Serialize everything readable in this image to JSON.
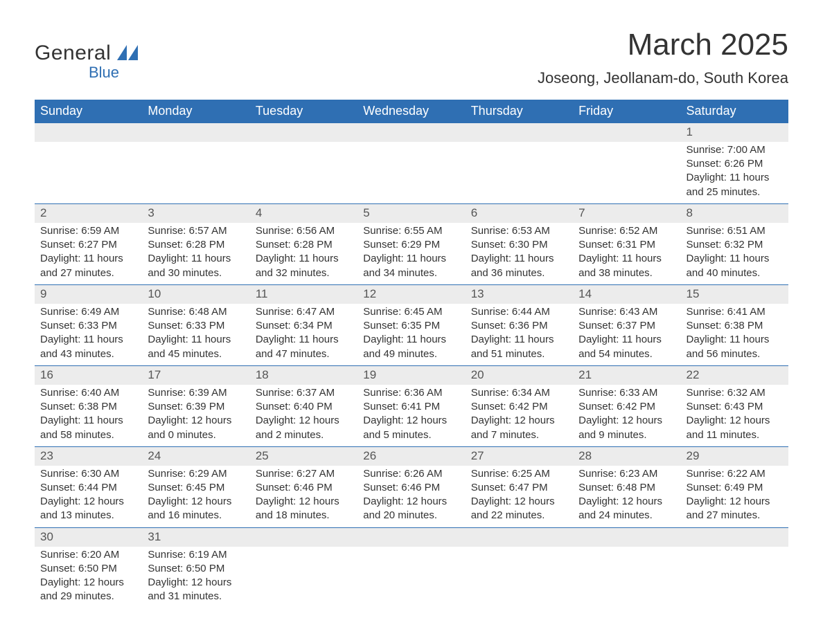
{
  "brand": {
    "name_general": "General",
    "name_blue": "Blue",
    "accent_color": "#2f6fb3"
  },
  "title": "March 2025",
  "subtitle": "Joseong, Jeollanam-do, South Korea",
  "styling": {
    "header_bg": "#2f6fb3",
    "header_text": "#ffffff",
    "daynum_bg": "#ececec",
    "row_separator": "#2f6fb3",
    "body_text": "#333333",
    "page_bg": "#ffffff",
    "title_fontsize": 44,
    "subtitle_fontsize": 22,
    "dayheader_fontsize": 18,
    "body_fontsize": 15
  },
  "day_labels": [
    "Sunday",
    "Monday",
    "Tuesday",
    "Wednesday",
    "Thursday",
    "Friday",
    "Saturday"
  ],
  "weeks": [
    [
      null,
      null,
      null,
      null,
      null,
      null,
      {
        "n": "1",
        "sunrise": "Sunrise: 7:00 AM",
        "sunset": "Sunset: 6:26 PM",
        "day1": "Daylight: 11 hours",
        "day2": "and 25 minutes."
      }
    ],
    [
      {
        "n": "2",
        "sunrise": "Sunrise: 6:59 AM",
        "sunset": "Sunset: 6:27 PM",
        "day1": "Daylight: 11 hours",
        "day2": "and 27 minutes."
      },
      {
        "n": "3",
        "sunrise": "Sunrise: 6:57 AM",
        "sunset": "Sunset: 6:28 PM",
        "day1": "Daylight: 11 hours",
        "day2": "and 30 minutes."
      },
      {
        "n": "4",
        "sunrise": "Sunrise: 6:56 AM",
        "sunset": "Sunset: 6:28 PM",
        "day1": "Daylight: 11 hours",
        "day2": "and 32 minutes."
      },
      {
        "n": "5",
        "sunrise": "Sunrise: 6:55 AM",
        "sunset": "Sunset: 6:29 PM",
        "day1": "Daylight: 11 hours",
        "day2": "and 34 minutes."
      },
      {
        "n": "6",
        "sunrise": "Sunrise: 6:53 AM",
        "sunset": "Sunset: 6:30 PM",
        "day1": "Daylight: 11 hours",
        "day2": "and 36 minutes."
      },
      {
        "n": "7",
        "sunrise": "Sunrise: 6:52 AM",
        "sunset": "Sunset: 6:31 PM",
        "day1": "Daylight: 11 hours",
        "day2": "and 38 minutes."
      },
      {
        "n": "8",
        "sunrise": "Sunrise: 6:51 AM",
        "sunset": "Sunset: 6:32 PM",
        "day1": "Daylight: 11 hours",
        "day2": "and 40 minutes."
      }
    ],
    [
      {
        "n": "9",
        "sunrise": "Sunrise: 6:49 AM",
        "sunset": "Sunset: 6:33 PM",
        "day1": "Daylight: 11 hours",
        "day2": "and 43 minutes."
      },
      {
        "n": "10",
        "sunrise": "Sunrise: 6:48 AM",
        "sunset": "Sunset: 6:33 PM",
        "day1": "Daylight: 11 hours",
        "day2": "and 45 minutes."
      },
      {
        "n": "11",
        "sunrise": "Sunrise: 6:47 AM",
        "sunset": "Sunset: 6:34 PM",
        "day1": "Daylight: 11 hours",
        "day2": "and 47 minutes."
      },
      {
        "n": "12",
        "sunrise": "Sunrise: 6:45 AM",
        "sunset": "Sunset: 6:35 PM",
        "day1": "Daylight: 11 hours",
        "day2": "and 49 minutes."
      },
      {
        "n": "13",
        "sunrise": "Sunrise: 6:44 AM",
        "sunset": "Sunset: 6:36 PM",
        "day1": "Daylight: 11 hours",
        "day2": "and 51 minutes."
      },
      {
        "n": "14",
        "sunrise": "Sunrise: 6:43 AM",
        "sunset": "Sunset: 6:37 PM",
        "day1": "Daylight: 11 hours",
        "day2": "and 54 minutes."
      },
      {
        "n": "15",
        "sunrise": "Sunrise: 6:41 AM",
        "sunset": "Sunset: 6:38 PM",
        "day1": "Daylight: 11 hours",
        "day2": "and 56 minutes."
      }
    ],
    [
      {
        "n": "16",
        "sunrise": "Sunrise: 6:40 AM",
        "sunset": "Sunset: 6:38 PM",
        "day1": "Daylight: 11 hours",
        "day2": "and 58 minutes."
      },
      {
        "n": "17",
        "sunrise": "Sunrise: 6:39 AM",
        "sunset": "Sunset: 6:39 PM",
        "day1": "Daylight: 12 hours",
        "day2": "and 0 minutes."
      },
      {
        "n": "18",
        "sunrise": "Sunrise: 6:37 AM",
        "sunset": "Sunset: 6:40 PM",
        "day1": "Daylight: 12 hours",
        "day2": "and 2 minutes."
      },
      {
        "n": "19",
        "sunrise": "Sunrise: 6:36 AM",
        "sunset": "Sunset: 6:41 PM",
        "day1": "Daylight: 12 hours",
        "day2": "and 5 minutes."
      },
      {
        "n": "20",
        "sunrise": "Sunrise: 6:34 AM",
        "sunset": "Sunset: 6:42 PM",
        "day1": "Daylight: 12 hours",
        "day2": "and 7 minutes."
      },
      {
        "n": "21",
        "sunrise": "Sunrise: 6:33 AM",
        "sunset": "Sunset: 6:42 PM",
        "day1": "Daylight: 12 hours",
        "day2": "and 9 minutes."
      },
      {
        "n": "22",
        "sunrise": "Sunrise: 6:32 AM",
        "sunset": "Sunset: 6:43 PM",
        "day1": "Daylight: 12 hours",
        "day2": "and 11 minutes."
      }
    ],
    [
      {
        "n": "23",
        "sunrise": "Sunrise: 6:30 AM",
        "sunset": "Sunset: 6:44 PM",
        "day1": "Daylight: 12 hours",
        "day2": "and 13 minutes."
      },
      {
        "n": "24",
        "sunrise": "Sunrise: 6:29 AM",
        "sunset": "Sunset: 6:45 PM",
        "day1": "Daylight: 12 hours",
        "day2": "and 16 minutes."
      },
      {
        "n": "25",
        "sunrise": "Sunrise: 6:27 AM",
        "sunset": "Sunset: 6:46 PM",
        "day1": "Daylight: 12 hours",
        "day2": "and 18 minutes."
      },
      {
        "n": "26",
        "sunrise": "Sunrise: 6:26 AM",
        "sunset": "Sunset: 6:46 PM",
        "day1": "Daylight: 12 hours",
        "day2": "and 20 minutes."
      },
      {
        "n": "27",
        "sunrise": "Sunrise: 6:25 AM",
        "sunset": "Sunset: 6:47 PM",
        "day1": "Daylight: 12 hours",
        "day2": "and 22 minutes."
      },
      {
        "n": "28",
        "sunrise": "Sunrise: 6:23 AM",
        "sunset": "Sunset: 6:48 PM",
        "day1": "Daylight: 12 hours",
        "day2": "and 24 minutes."
      },
      {
        "n": "29",
        "sunrise": "Sunrise: 6:22 AM",
        "sunset": "Sunset: 6:49 PM",
        "day1": "Daylight: 12 hours",
        "day2": "and 27 minutes."
      }
    ],
    [
      {
        "n": "30",
        "sunrise": "Sunrise: 6:20 AM",
        "sunset": "Sunset: 6:50 PM",
        "day1": "Daylight: 12 hours",
        "day2": "and 29 minutes."
      },
      {
        "n": "31",
        "sunrise": "Sunrise: 6:19 AM",
        "sunset": "Sunset: 6:50 PM",
        "day1": "Daylight: 12 hours",
        "day2": "and 31 minutes."
      },
      null,
      null,
      null,
      null,
      null
    ]
  ]
}
